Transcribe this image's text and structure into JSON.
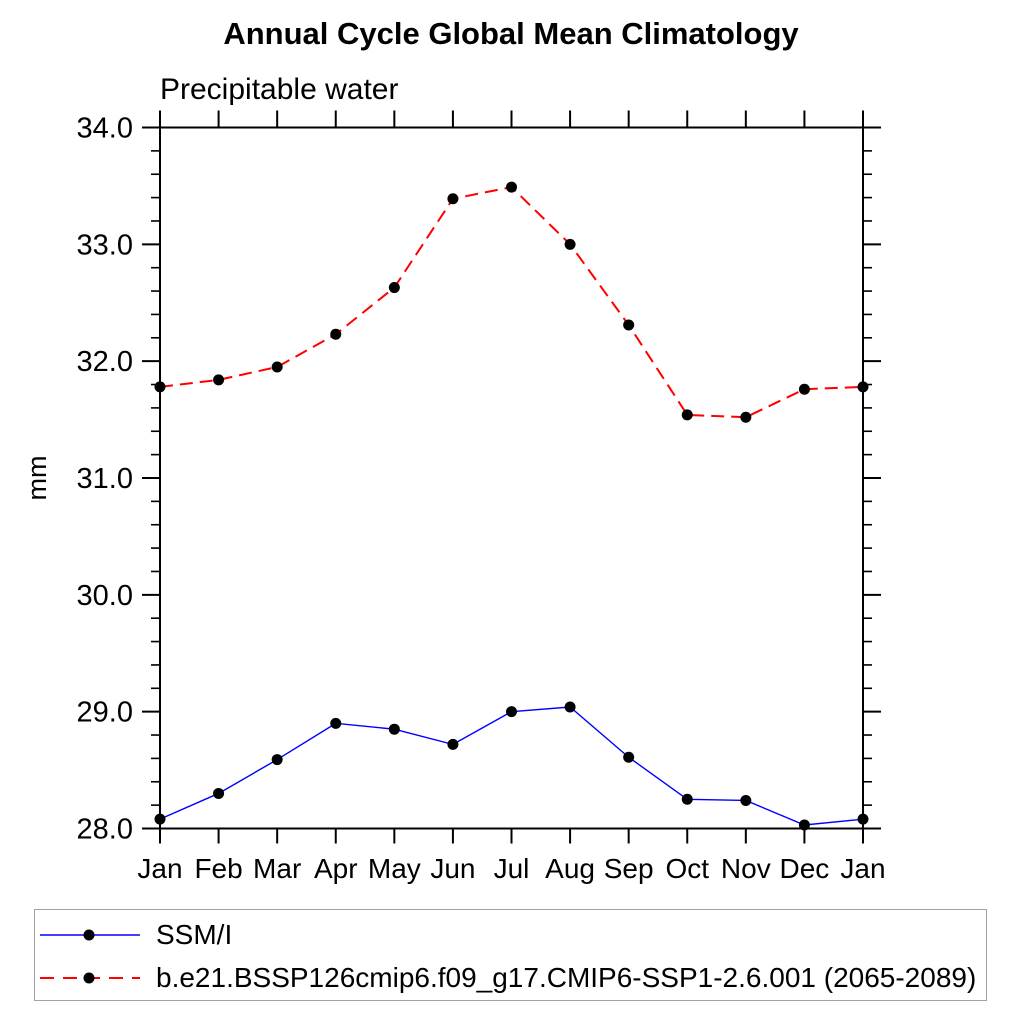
{
  "chart_data": {
    "type": "line",
    "title": "Annual Cycle Global Mean Climatology",
    "subtitle": "Precipitable water",
    "ylabel": "mm",
    "categories": [
      "Jan",
      "Feb",
      "Mar",
      "Apr",
      "May",
      "Jun",
      "Jul",
      "Aug",
      "Sep",
      "Oct",
      "Nov",
      "Dec",
      "Jan"
    ],
    "ylim": [
      28.0,
      34.0
    ],
    "ytick_step": 1.0,
    "ytick_minor_step": 0.2,
    "ytick_labels": [
      "28.0",
      "29.0",
      "30.0",
      "31.0",
      "32.0",
      "33.0",
      "34.0"
    ],
    "grid": false,
    "legend_position": "bottom-left-box",
    "axis_color": "#000000",
    "series": [
      {
        "name": "SSM/I",
        "color": "#0000ff",
        "line_style": "solid",
        "marker": "filled-circle",
        "marker_color": "#000000",
        "values": [
          28.08,
          28.3,
          28.59,
          28.9,
          28.85,
          28.72,
          29.0,
          29.04,
          28.61,
          28.25,
          28.24,
          28.03,
          28.08
        ]
      },
      {
        "name": "b.e21.BSSP126cmip6.f09_g17.CMIP6-SSP1-2.6.001 (2065-2089)",
        "color": "#ff0000",
        "line_style": "dashed",
        "marker": "filled-circle",
        "marker_color": "#000000",
        "values": [
          31.78,
          31.84,
          31.95,
          32.23,
          32.63,
          33.39,
          33.49,
          33.0,
          32.31,
          31.54,
          31.52,
          31.76,
          31.78
        ]
      }
    ]
  }
}
